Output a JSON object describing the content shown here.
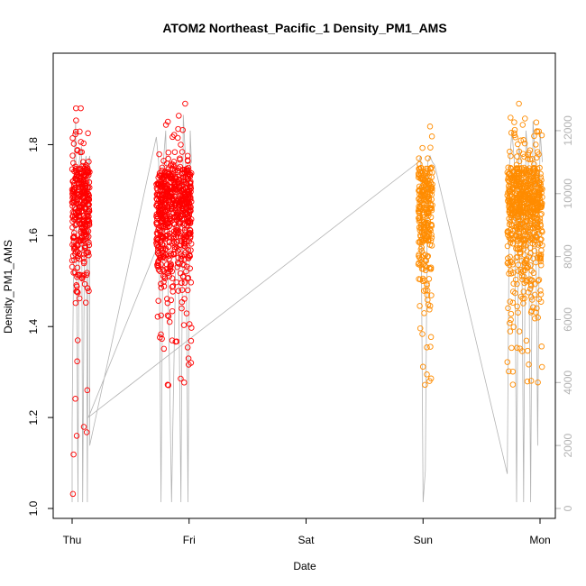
{
  "chart_data": {
    "type": "scatter",
    "title": "ATOM2 Northeast_Pacific_1 Density_PM1_AMS",
    "xlabel": "Date",
    "ylabel": "Density_PM1_AMS",
    "x_ticks": [
      "Thu",
      "Fri",
      "Sat",
      "Sun",
      "Mon"
    ],
    "x_range": [
      0,
      4
    ],
    "ylim": [
      1.0,
      1.9
    ],
    "y_ticks": [
      1.0,
      1.2,
      1.4,
      1.6,
      1.8
    ],
    "y2_ticks": [
      0,
      2000,
      4000,
      6000,
      8000,
      10000,
      12000
    ],
    "y2lim": [
      0,
      13000
    ],
    "grid": false,
    "series": [
      {
        "color": "#ff0000",
        "clusters": [
          {
            "x_start": 0.0,
            "x_end": 0.15,
            "y_center": 1.67,
            "y_spread": 0.09,
            "y_min": 1.0,
            "y_max": 1.88
          },
          {
            "x_start": 0.72,
            "x_end": 1.02,
            "y_center": 1.66,
            "y_spread": 0.09,
            "y_min": 1.27,
            "y_max": 1.89
          }
        ]
      },
      {
        "color": "#ff8c00",
        "clusters": [
          {
            "x_start": 2.96,
            "x_end": 3.08,
            "y_center": 1.66,
            "y_spread": 0.09,
            "y_min": 1.27,
            "y_max": 1.84
          },
          {
            "x_start": 3.72,
            "x_end": 4.02,
            "y_center": 1.67,
            "y_spread": 0.09,
            "y_min": 1.27,
            "y_max": 1.89
          }
        ]
      }
    ],
    "secondary_line": {
      "color": "#b3b3b3",
      "axis": "right",
      "x": [
        0.0,
        0.0,
        0.02,
        0.03,
        0.05,
        0.06,
        0.08,
        0.09,
        0.11,
        0.12,
        0.13,
        0.14,
        0.15,
        0.15,
        0.72,
        0.74,
        0.76,
        0.78,
        0.8,
        0.85,
        0.9,
        0.93,
        0.95,
        0.97,
        0.99,
        1.01,
        1.02,
        0.14,
        2.96,
        2.98,
        3.0,
        3.02,
        3.04,
        3.06,
        3.08,
        3.1,
        3.72,
        3.74,
        3.76,
        3.78,
        3.8,
        3.82,
        3.84,
        3.86,
        3.88,
        3.9,
        3.92,
        3.94,
        3.96,
        3.98,
        4.0,
        4.02
      ],
      "values": [
        200,
        2700,
        11200,
        12300,
        200,
        11000,
        11500,
        200,
        11000,
        11200,
        200,
        11000,
        11200,
        2000,
        11800,
        11000,
        200,
        11000,
        12000,
        200,
        11000,
        200,
        12500,
        11000,
        200,
        12000,
        11000,
        2900,
        11000,
        11200,
        200,
        1200,
        11000,
        11200,
        11000,
        10900,
        1100,
        11000,
        12000,
        11000,
        200,
        11500,
        11000,
        200,
        12000,
        11000,
        200,
        12300,
        11000,
        2000,
        12000,
        11000
      ]
    }
  }
}
